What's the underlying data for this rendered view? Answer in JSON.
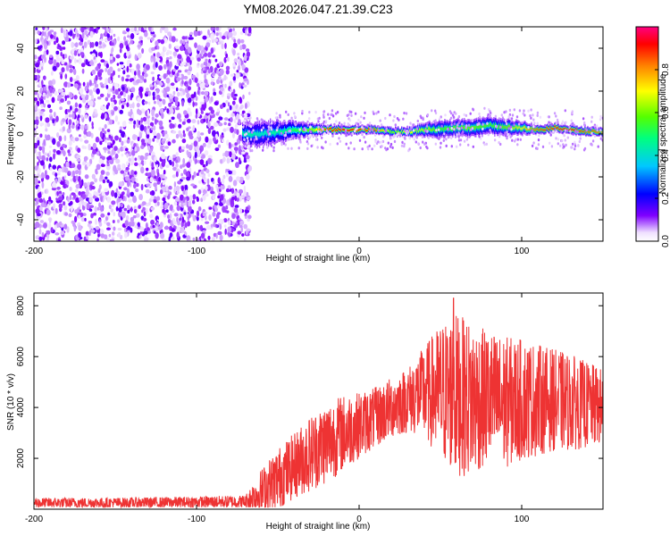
{
  "title": "YM08.2026.047.21.39.C23",
  "chart_data": [
    {
      "type": "heatmap",
      "title": "",
      "xlabel": "Height of straight line (km)",
      "ylabel": "Frequency (Hz)",
      "xlim": [
        -200,
        150
      ],
      "ylim": [
        -50,
        50
      ],
      "xticks": [
        -200,
        -100,
        0,
        100
      ],
      "yticks": [
        40,
        20,
        0,
        -20,
        -40
      ],
      "noise_region_x": [
        -200,
        -67
      ],
      "signal_band": {
        "x": [
          -72,
          -60,
          -50,
          -40,
          -30,
          -20,
          -10,
          0,
          10,
          20,
          30,
          40,
          50,
          60,
          70,
          80,
          90,
          100,
          110,
          120,
          130,
          140,
          150
        ],
        "center_hz": [
          0,
          0,
          1,
          2,
          2,
          2,
          2,
          2,
          2,
          1,
          1,
          2,
          2,
          3,
          3,
          4,
          3,
          3,
          2,
          3,
          2,
          1,
          1
        ],
        "halfwidth_hz": [
          5,
          6,
          5,
          4,
          3,
          2,
          2,
          2,
          2,
          2,
          2,
          3,
          4,
          4,
          4,
          4,
          4,
          3,
          2,
          2,
          2,
          2,
          2
        ],
        "peak_amplitude": [
          0.45,
          0.4,
          0.45,
          0.5,
          0.6,
          0.9,
          0.9,
          0.9,
          0.85,
          0.6,
          0.7,
          0.65,
          0.55,
          0.6,
          0.6,
          0.55,
          0.6,
          0.7,
          0.85,
          0.9,
          0.9,
          0.85,
          0.8
        ]
      },
      "colorbar": {
        "label": "Normalized spectral amplitude",
        "range": [
          0,
          1
        ],
        "ticks": [
          "0.0",
          "0.2",
          "0.4",
          "0.6",
          "0.8"
        ]
      }
    },
    {
      "type": "line",
      "title": "",
      "xlabel": "Height of straight line (km)",
      "ylabel": "SNR (10 * v/v)",
      "xlim": [
        -200,
        150
      ],
      "ylim": [
        0,
        8500
      ],
      "xticks": [
        -200,
        -100,
        0,
        100
      ],
      "yticks": [
        2000,
        4000,
        6000,
        8000
      ],
      "color": "#ee3333",
      "envelope": {
        "x": [
          -200,
          -150,
          -100,
          -70,
          -60,
          -50,
          -40,
          -30,
          -20,
          -10,
          0,
          10,
          20,
          30,
          40,
          50,
          60,
          70,
          80,
          90,
          100,
          110,
          120,
          130,
          140,
          150
        ],
        "mean": [
          250,
          250,
          280,
          300,
          700,
          1200,
          1700,
          2200,
          2600,
          3000,
          3300,
          3600,
          4000,
          4300,
          4600,
          4600,
          4500,
          4300,
          4400,
          4200,
          4300,
          4300,
          4300,
          4200,
          4100,
          4000
        ],
        "amplitude": [
          200,
          200,
          220,
          250,
          900,
          1200,
          1300,
          1500,
          1600,
          1500,
          1300,
          1200,
          1200,
          1300,
          1800,
          2700,
          3200,
          3000,
          2600,
          2600,
          2400,
          2200,
          2000,
          1900,
          1700,
          1500
        ],
        "peak_value": 8300,
        "peak_x": 58
      }
    }
  ]
}
